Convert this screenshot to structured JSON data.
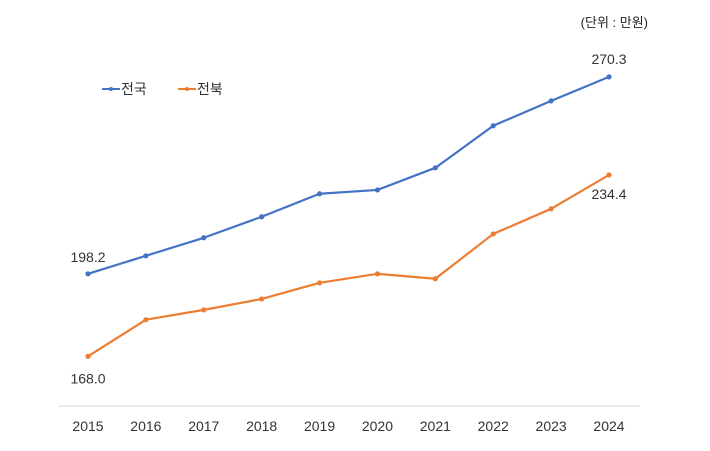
{
  "chart_data": {
    "type": "line",
    "unit_label": "(단위 : 만원)",
    "categories": [
      "2015",
      "2016",
      "2017",
      "2018",
      "2019",
      "2020",
      "2021",
      "2022",
      "2023",
      "2024"
    ],
    "series": [
      {
        "name": "전국",
        "color": "#4472C4",
        "values": [
          198.2,
          204.8,
          211.4,
          219.1,
          227.5,
          228.9,
          237.0,
          252.4,
          261.5,
          270.3
        ]
      },
      {
        "name": "전북",
        "color": "#ED7D31",
        "values": [
          168.0,
          181.4,
          185.0,
          189.0,
          194.9,
          198.2,
          196.4,
          212.8,
          222.0,
          234.4
        ]
      }
    ],
    "data_labels": [
      {
        "series": 0,
        "index": 0,
        "text": "198.2"
      },
      {
        "series": 0,
        "index": 9,
        "text": "270.3"
      },
      {
        "series": 1,
        "index": 0,
        "text": "168.0"
      },
      {
        "series": 1,
        "index": 9,
        "text": "234.4"
      }
    ],
    "ylim": [
      150,
      285
    ],
    "grid": false,
    "legend_position": "top-left",
    "axis_color": "#D9D9D9"
  }
}
